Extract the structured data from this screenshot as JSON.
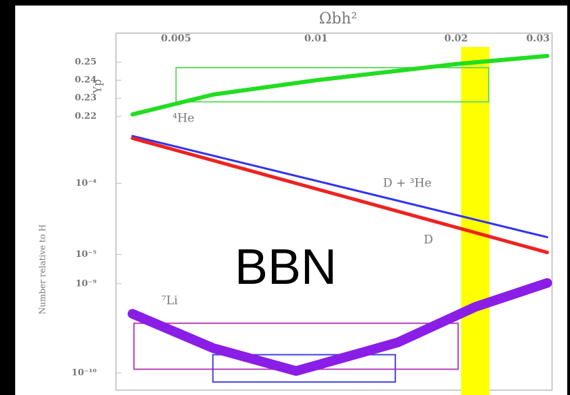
{
  "chart_data": [
    {
      "type": "line",
      "title": "Ωbh²",
      "ylabel": "Yp",
      "xscale": "log",
      "xlim": [
        0.00403,
        0.0314
      ],
      "xticks": [
        0.005,
        0.01,
        0.02,
        0.03
      ],
      "ylim": [
        0.2155,
        0.2585
      ],
      "yticks": [
        0.22,
        0.23,
        0.24,
        0.25
      ],
      "band": {
        "color": "#ffff00",
        "xrange": [
          0.0205,
          0.0236
        ]
      },
      "boxes": [
        {
          "color": "#66dd66",
          "xrange": [
            0.005,
            0.0235
          ],
          "yrange": [
            0.228,
            0.247
          ]
        }
      ],
      "series": [
        {
          "name": "⁴He",
          "color": "#22dd22",
          "width": 6,
          "x": [
            0.00403,
            0.006,
            0.01,
            0.02,
            0.0314
          ],
          "values": [
            0.221,
            0.232,
            0.24,
            0.249,
            0.2535
          ]
        }
      ]
    },
    {
      "type": "line",
      "ylabel": "Number relative to H",
      "xscale": "log",
      "yscale": "log",
      "xlim": [
        0.00403,
        0.0314
      ],
      "ylim": [
        6.2e-06,
        0.0006
      ],
      "yticks": [
        {
          "value": 0.0001,
          "label": "10⁻⁴"
        },
        {
          "value": 1e-05,
          "label": "10⁻⁵"
        }
      ],
      "series": [
        {
          "name": "D + ³He",
          "color": "#3333ee",
          "width": 3,
          "x": [
            0.00403,
            0.0314
          ],
          "values": [
            0.00046,
            1.75e-05
          ]
        },
        {
          "name": "D",
          "color": "#ee2222",
          "width": 5,
          "x": [
            0.00403,
            0.0314
          ],
          "values": [
            0.000427,
            1.07e-05
          ]
        }
      ]
    },
    {
      "type": "line",
      "xscale": "log",
      "yscale": "log",
      "xlim": [
        0.00403,
        0.0314
      ],
      "ylim": [
        7e-11,
        1.45e-09
      ],
      "yticks": [
        {
          "value": 1e-09,
          "label": "10⁻⁹"
        },
        {
          "value": 1e-10,
          "label": "10⁻¹⁰"
        }
      ],
      "boxes": [
        {
          "color": "#bb44bb",
          "xrange": [
            0.00406,
            0.0202
          ],
          "yrange": [
            1.1e-10,
            3.6e-10
          ]
        },
        {
          "color": "#4444dd",
          "xrange": [
            0.006,
            0.0148
          ],
          "yrange": [
            7.9e-11,
            1.6e-10
          ]
        }
      ],
      "series": [
        {
          "name": "⁷Li",
          "color": "#8a1ee6",
          "width": 14,
          "x": [
            0.00403,
            0.006,
            0.00906,
            0.015,
            0.022,
            0.0314
          ],
          "values": [
            4.6e-10,
            1.9e-10,
            1.05e-10,
            2.2e-10,
            5.5e-10,
            1.02e-09
          ]
        }
      ]
    }
  ],
  "label": "BBN"
}
